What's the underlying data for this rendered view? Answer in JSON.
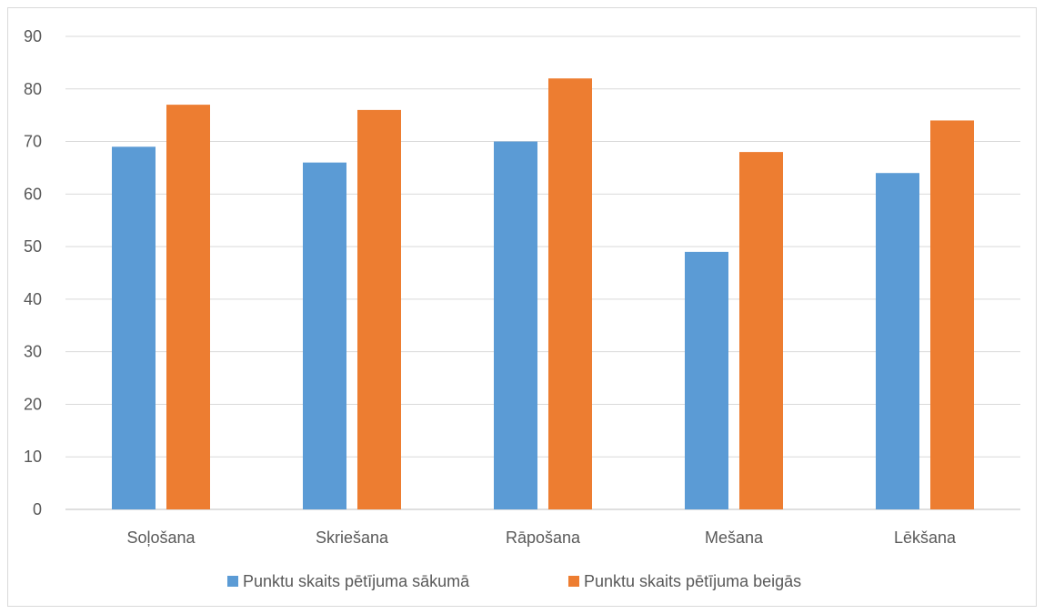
{
  "chart_data": {
    "type": "bar",
    "title": "",
    "xlabel": "",
    "ylabel": "",
    "categories": [
      "Soļošana",
      "Skriešana",
      "Rāpošana",
      "Mešana",
      "Lēkšana"
    ],
    "series": [
      {
        "name": "Punktu skaits pētījuma sākumā",
        "values": [
          69,
          66,
          70,
          49,
          64
        ],
        "color": "#5b9bd5"
      },
      {
        "name": "Punktu skaits pētījuma beigās",
        "values": [
          77,
          76,
          82,
          68,
          74
        ],
        "color": "#ed7d31"
      }
    ],
    "ylim": [
      0,
      90
    ],
    "yticks": [
      0,
      10,
      20,
      30,
      40,
      50,
      60,
      70,
      80,
      90
    ],
    "grid": true,
    "legend_position": "bottom"
  }
}
